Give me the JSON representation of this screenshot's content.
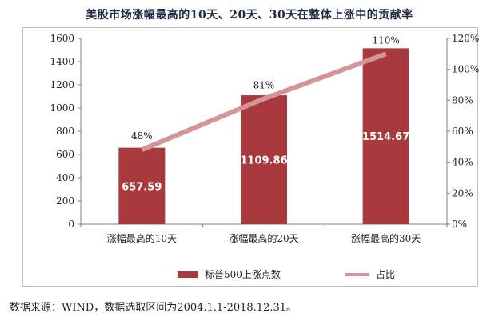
{
  "title": "美股市场涨幅最高的10天、20天、30天在整体上涨中的贡献率",
  "source": "数据来源：WIND，数据选取区间为2004.1.1-2018.12.31。",
  "colors": {
    "bar": "#a83a3d",
    "line": "#d39596",
    "axis": "#7f7f7f",
    "bar_label": "#ffffff"
  },
  "chart_data": {
    "type": "bar+line",
    "categories": [
      "涨幅最高的10天",
      "涨幅最高的20天",
      "涨幅最高的30天"
    ],
    "series": [
      {
        "name": "标普500上涨点数",
        "type": "bar",
        "axis": "left",
        "values": [
          657.59,
          1109.86,
          1514.67
        ],
        "value_labels": [
          "657.59",
          "1109.86",
          "1514.67"
        ]
      },
      {
        "name": "占比",
        "type": "line",
        "axis": "right",
        "values": [
          48,
          81,
          110
        ],
        "value_labels": [
          "48%",
          "81%",
          "110%"
        ]
      }
    ],
    "y_left": {
      "range": [
        0,
        1600
      ],
      "ticks": [
        "0",
        "200",
        "400",
        "600",
        "800",
        "1000",
        "1200",
        "1400",
        "1600"
      ]
    },
    "y_right": {
      "range": [
        0,
        120
      ],
      "ticks": [
        "0%",
        "20%",
        "40%",
        "60%",
        "80%",
        "100%",
        "120%"
      ]
    },
    "grid": false,
    "legend": "bottom"
  }
}
